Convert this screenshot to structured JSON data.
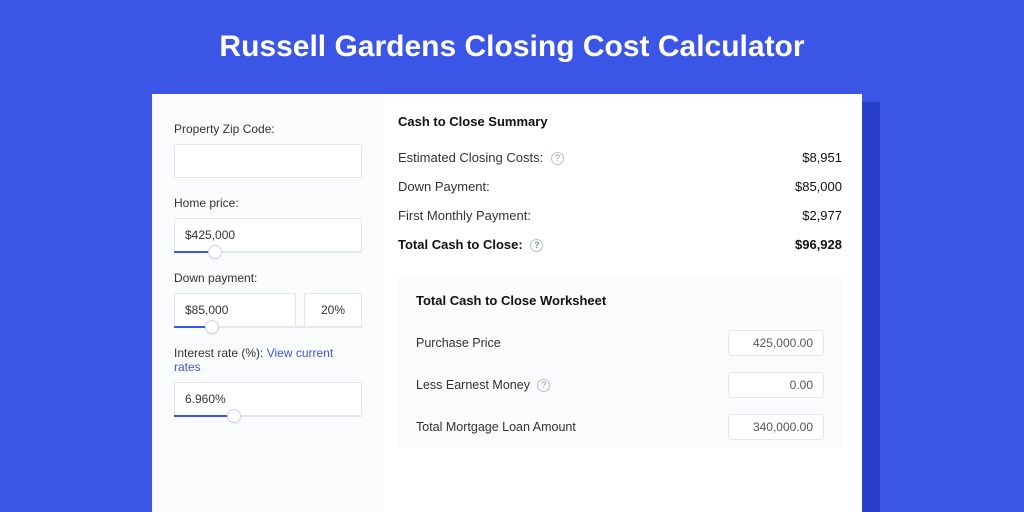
{
  "colors": {
    "page_bg": "#3b55e6",
    "shadow": "#2a3fc9",
    "card_bg": "#ffffff",
    "panel_bg": "#fafbfd",
    "border": "#e3e6ec",
    "accent": "#3b55e6",
    "text": "#333333",
    "title_text": "#ffffff"
  },
  "title": "Russell Gardens Closing Cost Calculator",
  "sidebar": {
    "zip": {
      "label": "Property Zip Code:",
      "value": ""
    },
    "home_price": {
      "label": "Home price:",
      "value": "$425,000",
      "slider_pct": 22
    },
    "down_payment": {
      "label": "Down payment:",
      "value": "$85,000",
      "pct_value": "20%",
      "slider_pct": 20
    },
    "interest_rate": {
      "label": "Interest rate (%):",
      "link_text": "View current rates",
      "value": "6.960%",
      "slider_pct": 32
    }
  },
  "summary": {
    "title": "Cash to Close Summary",
    "rows": [
      {
        "label": "Estimated Closing Costs:",
        "help": true,
        "value": "$8,951"
      },
      {
        "label": "Down Payment:",
        "help": false,
        "value": "$85,000"
      },
      {
        "label": "First Monthly Payment:",
        "help": false,
        "value": "$2,977"
      }
    ],
    "total": {
      "label": "Total Cash to Close:",
      "help": true,
      "value": "$96,928"
    }
  },
  "worksheet": {
    "title": "Total Cash to Close Worksheet",
    "rows": [
      {
        "label": "Purchase Price",
        "help": false,
        "value": "425,000.00"
      },
      {
        "label": "Less Earnest Money",
        "help": true,
        "value": "0.00"
      },
      {
        "label": "Total Mortgage Loan Amount",
        "help": false,
        "value": "340,000.00"
      }
    ]
  }
}
